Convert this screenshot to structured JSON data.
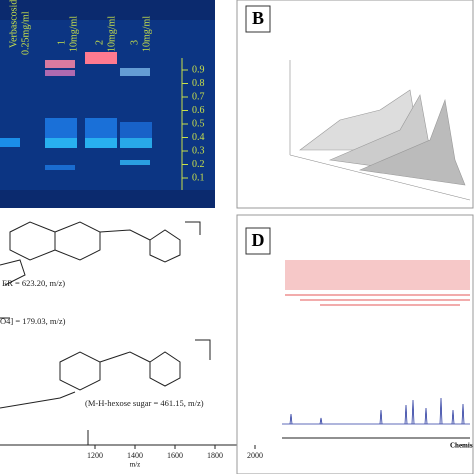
{
  "panel_a": {
    "lanes": [
      {
        "name": "Verbascoside",
        "conc": "0.25mg/ml"
      },
      {
        "name": "1",
        "conc": "10mg/ml"
      },
      {
        "name": "2",
        "conc": "10mg/ml"
      },
      {
        "name": "3",
        "conc": "10mg/ml"
      }
    ],
    "rf_ticks": [
      0.9,
      0.8,
      0.7,
      0.6,
      0.5,
      0.4,
      0.3,
      0.2,
      0.1
    ]
  },
  "panel_b": {
    "label": "B"
  },
  "panel_c": {
    "annotations": [
      "ER = 623.20, m/z)",
      "O4] = 179.03, m/z)",
      "(M-H-hexose sugar = 461.15, m/z)"
    ],
    "x_ticks": [
      1200,
      1400,
      1600,
      1800,
      2000
    ],
    "x_label": "m/z"
  },
  "panel_d": {
    "label": "D",
    "x_label": "Chemis"
  }
}
